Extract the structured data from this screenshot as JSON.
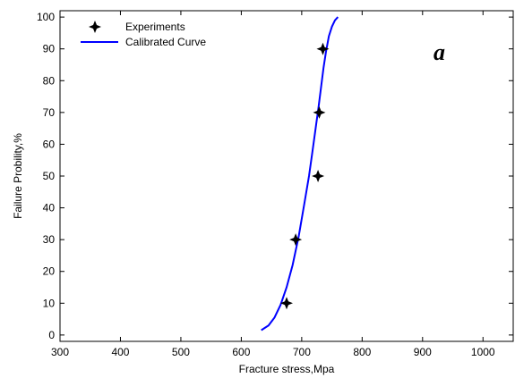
{
  "chart_data": {
    "type": "scatter",
    "title": "",
    "xlabel": "Fracture stress,Mpa",
    "ylabel": "Failure Probility,%",
    "xlim": [
      300,
      1050
    ],
    "ylim": [
      -2,
      102
    ],
    "xticks": [
      300,
      400,
      500,
      600,
      700,
      800,
      900,
      1000
    ],
    "yticks": [
      0,
      10,
      20,
      30,
      40,
      50,
      60,
      70,
      80,
      90,
      100
    ],
    "grid": false,
    "legend_position": "top-left",
    "annotation": "a",
    "series": [
      {
        "name": "Experiments",
        "kind": "scatter",
        "marker": "star",
        "color": "#000000",
        "x": [
          675,
          690,
          727,
          729,
          735
        ],
        "y": [
          10,
          30,
          50,
          70,
          90
        ]
      },
      {
        "name": "Calibrated Curve",
        "kind": "line",
        "color": "#0000ff",
        "x": [
          633,
          645,
          655,
          665,
          675,
          685,
          695,
          705,
          712,
          718,
          723,
          728,
          732,
          736,
          740,
          745,
          750,
          755,
          760
        ],
        "y": [
          1.5,
          3,
          5.5,
          9.5,
          15,
          22,
          31,
          42,
          50,
          58,
          65,
          72,
          78,
          84,
          89,
          94,
          97,
          99,
          100
        ]
      }
    ]
  }
}
